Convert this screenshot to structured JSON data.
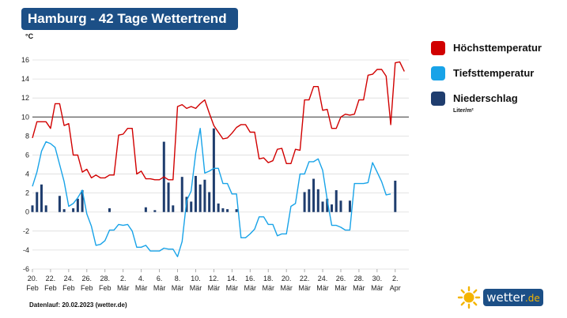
{
  "header": {
    "title": "Hamburg - 42 Tage Wettertrend"
  },
  "footer": {
    "source": "Datenlauf: 20.02.2023 (wetter.de)"
  },
  "logo": {
    "name": "wetter",
    "tld": ".de"
  },
  "legend": {
    "items": [
      {
        "label": "Höchsttemperatur",
        "color": "#d10000"
      },
      {
        "label": "Tiefsttemperatur",
        "color": "#18a3e8"
      },
      {
        "label": "Niederschlag",
        "color": "#1f3d6e"
      }
    ],
    "precip_unit": "Liter/m²"
  },
  "chart_data": {
    "type": "line",
    "ylabel": "°C",
    "ylim": [
      -6,
      16
    ],
    "yticks": [
      -6,
      -4,
      -2,
      0,
      2,
      4,
      6,
      8,
      10,
      12,
      14,
      16
    ],
    "reference_line": 10,
    "grid": true,
    "x_ticks": [
      {
        "day": "20.",
        "month": "Feb"
      },
      {
        "day": "22.",
        "month": "Feb"
      },
      {
        "day": "24.",
        "month": "Feb"
      },
      {
        "day": "26.",
        "month": "Feb"
      },
      {
        "day": "28.",
        "month": "Feb"
      },
      {
        "day": "2.",
        "month": "Mär"
      },
      {
        "day": "4.",
        "month": "Mär"
      },
      {
        "day": "6.",
        "month": "Mär"
      },
      {
        "day": "8.",
        "month": "Mär"
      },
      {
        "day": "10.",
        "month": "Mär"
      },
      {
        "day": "12.",
        "month": "Mär"
      },
      {
        "day": "14.",
        "month": "Mär"
      },
      {
        "day": "16.",
        "month": "Mär"
      },
      {
        "day": "18.",
        "month": "Mär"
      },
      {
        "day": "20.",
        "month": "Mär"
      },
      {
        "day": "22.",
        "month": "Mär"
      },
      {
        "day": "24.",
        "month": "Mär"
      },
      {
        "day": "26.",
        "month": "Mär"
      },
      {
        "day": "28.",
        "month": "Mär"
      },
      {
        "day": "30.",
        "month": "Mär"
      },
      {
        "day": "2.",
        "month": "Apr"
      }
    ],
    "x_days": [
      0,
      41.5
    ],
    "series": [
      {
        "name": "Höchsttemperatur",
        "color": "#d10000",
        "points": [
          [
            0,
            7.8
          ],
          [
            0.5,
            9.5
          ],
          [
            1.5,
            9.5
          ],
          [
            2,
            8.8
          ],
          [
            2.5,
            11.4
          ],
          [
            3,
            11.4
          ],
          [
            3.5,
            9.1
          ],
          [
            4,
            9.3
          ],
          [
            4.5,
            6.0
          ],
          [
            5,
            6.0
          ],
          [
            5.5,
            4.2
          ],
          [
            6,
            4.5
          ],
          [
            6.5,
            3.6
          ],
          [
            7,
            3.9
          ],
          [
            7.5,
            3.6
          ],
          [
            8,
            3.6
          ],
          [
            8.5,
            3.9
          ],
          [
            9,
            3.9
          ],
          [
            9.5,
            8.1
          ],
          [
            10,
            8.2
          ],
          [
            10.5,
            8.8
          ],
          [
            11,
            8.8
          ],
          [
            11.5,
            4.0
          ],
          [
            12,
            4.3
          ],
          [
            12.5,
            3.5
          ],
          [
            13,
            3.5
          ],
          [
            13.5,
            3.4
          ],
          [
            14,
            3.4
          ],
          [
            14.5,
            3.7
          ],
          [
            15,
            3.4
          ],
          [
            15.5,
            3.4
          ],
          [
            16,
            11.1
          ],
          [
            16.5,
            11.3
          ],
          [
            17,
            10.9
          ],
          [
            17.5,
            11.1
          ],
          [
            18,
            10.9
          ],
          [
            18.5,
            11.4
          ],
          [
            19,
            11.8
          ],
          [
            19.5,
            10.4
          ],
          [
            20,
            9.1
          ],
          [
            20.5,
            8.4
          ],
          [
            21,
            7.7
          ],
          [
            21.5,
            7.8
          ],
          [
            22,
            8.3
          ],
          [
            22.5,
            8.9
          ],
          [
            23,
            9.2
          ],
          [
            23.5,
            9.2
          ],
          [
            24,
            8.4
          ],
          [
            24.5,
            8.4
          ],
          [
            25,
            5.6
          ],
          [
            25.5,
            5.7
          ],
          [
            26,
            5.2
          ],
          [
            26.5,
            5.4
          ],
          [
            27,
            6.6
          ],
          [
            27.5,
            6.7
          ],
          [
            28,
            5.1
          ],
          [
            28.5,
            5.1
          ],
          [
            29,
            6.6
          ],
          [
            29.5,
            6.5
          ],
          [
            30,
            11.8
          ],
          [
            30.5,
            11.8
          ],
          [
            31,
            13.2
          ],
          [
            31.5,
            13.2
          ],
          [
            32,
            10.7
          ],
          [
            32.5,
            10.8
          ],
          [
            33,
            8.8
          ],
          [
            33.5,
            8.8
          ],
          [
            34,
            10.0
          ],
          [
            34.5,
            10.3
          ],
          [
            35,
            10.2
          ],
          [
            35.5,
            10.3
          ],
          [
            36,
            11.8
          ],
          [
            36.5,
            11.8
          ],
          [
            37,
            14.4
          ],
          [
            37.5,
            14.5
          ],
          [
            38,
            15.0
          ],
          [
            38.5,
            15.0
          ],
          [
            39,
            14.3
          ],
          [
            39.5,
            9.2
          ],
          [
            40,
            15.7
          ],
          [
            40.5,
            15.8
          ],
          [
            41,
            14.8
          ]
        ]
      },
      {
        "name": "Tiefsttemperatur",
        "color": "#18a3e8",
        "points": [
          [
            0,
            2.7
          ],
          [
            0.5,
            4.2
          ],
          [
            1,
            6.4
          ],
          [
            1.5,
            7.4
          ],
          [
            2,
            7.2
          ],
          [
            2.5,
            6.8
          ],
          [
            3,
            5.0
          ],
          [
            3.5,
            3.2
          ],
          [
            4,
            0.6
          ],
          [
            4.5,
            0.9
          ],
          [
            5,
            1.5
          ],
          [
            5.5,
            2.3
          ],
          [
            6,
            -0.2
          ],
          [
            6.5,
            -1.5
          ],
          [
            7,
            -3.5
          ],
          [
            7.5,
            -3.4
          ],
          [
            8,
            -3.0
          ],
          [
            8.5,
            -1.9
          ],
          [
            9,
            -1.9
          ],
          [
            9.5,
            -1.3
          ],
          [
            10,
            -1.4
          ],
          [
            10.5,
            -1.3
          ],
          [
            11,
            -2.0
          ],
          [
            11.5,
            -3.7
          ],
          [
            12,
            -3.7
          ],
          [
            12.5,
            -3.5
          ],
          [
            13,
            -4.1
          ],
          [
            13.5,
            -4.1
          ],
          [
            14,
            -4.1
          ],
          [
            14.5,
            -3.8
          ],
          [
            15,
            -3.9
          ],
          [
            15.5,
            -3.9
          ],
          [
            16,
            -4.7
          ],
          [
            16.5,
            -3.1
          ],
          [
            17,
            1.2
          ],
          [
            17.5,
            2.2
          ],
          [
            18,
            6.2
          ],
          [
            18.5,
            8.8
          ],
          [
            19,
            4.1
          ],
          [
            19.5,
            4.3
          ],
          [
            20,
            4.6
          ],
          [
            20.5,
            4.6
          ],
          [
            21,
            3.0
          ],
          [
            21.5,
            3.0
          ],
          [
            22,
            1.9
          ],
          [
            22.5,
            1.9
          ],
          [
            23,
            -2.7
          ],
          [
            23.5,
            -2.7
          ],
          [
            24,
            -2.3
          ],
          [
            24.5,
            -1.8
          ],
          [
            25,
            -0.5
          ],
          [
            25.5,
            -0.5
          ],
          [
            26,
            -1.3
          ],
          [
            26.5,
            -1.3
          ],
          [
            27,
            -2.5
          ],
          [
            27.5,
            -2.3
          ],
          [
            28,
            -2.3
          ],
          [
            28.5,
            0.6
          ],
          [
            29,
            0.9
          ],
          [
            29.5,
            4.0
          ],
          [
            30,
            4.0
          ],
          [
            30.5,
            5.3
          ],
          [
            31,
            5.3
          ],
          [
            31.5,
            5.6
          ],
          [
            32,
            4.4
          ],
          [
            32.5,
            1.3
          ],
          [
            33,
            -1.4
          ],
          [
            33.5,
            -1.4
          ],
          [
            34,
            -1.6
          ],
          [
            34.5,
            -1.9
          ],
          [
            35,
            -1.9
          ],
          [
            35.5,
            3.0
          ],
          [
            36,
            3.0
          ],
          [
            36.5,
            3.0
          ],
          [
            37,
            3.1
          ],
          [
            37.5,
            5.2
          ],
          [
            38,
            4.2
          ],
          [
            38.5,
            3.2
          ],
          [
            39,
            1.8
          ],
          [
            39.5,
            1.9
          ]
        ]
      }
    ],
    "precipitation": {
      "name": "Niederschlag",
      "color": "#1f3d6e",
      "days": [
        0,
        0.5,
        1,
        1.5,
        3,
        3.5,
        4.5,
        5,
        5.5,
        8.5,
        12.5,
        13.5,
        14.5,
        15,
        15.5,
        16.5,
        17,
        17.5,
        18,
        18.5,
        19,
        19.5,
        20,
        20.5,
        21,
        21.5,
        22.5,
        30,
        30.5,
        31,
        31.5,
        32,
        32.5,
        33,
        33.5,
        34,
        35,
        40
      ],
      "values": [
        0.7,
        2.1,
        2.9,
        0.7,
        1.7,
        0.3,
        0.4,
        1.4,
        2.3,
        0.4,
        0.5,
        0.2,
        7.4,
        3.1,
        0.7,
        3.7,
        1.6,
        1.1,
        3.8,
        2.9,
        3.4,
        2.1,
        8.8,
        0.9,
        0.4,
        0.3,
        0.3,
        2.1,
        2.4,
        3.5,
        2.4,
        1.1,
        1.4,
        0.8,
        2.3,
        1.2,
        1.2,
        3.3
      ]
    }
  }
}
